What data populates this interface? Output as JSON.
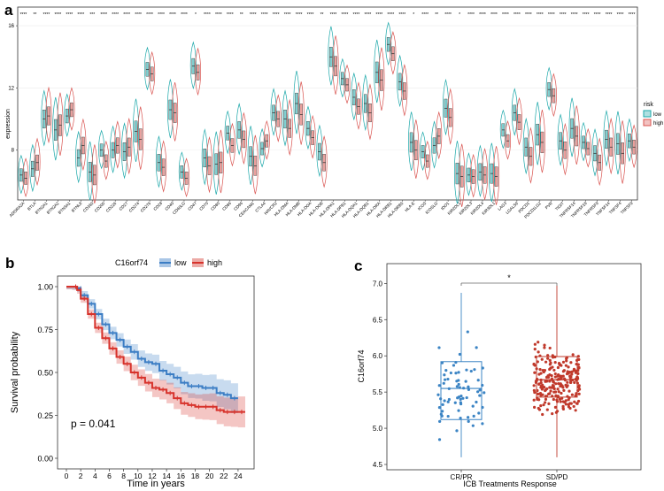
{
  "colors": {
    "low": "#1aa7a9",
    "high": "#d9534f",
    "km_low": "#3b7dc4",
    "km_high": "#d7322b",
    "box_low": "#3b84c4",
    "box_high": "#c0392b"
  },
  "panel_a": {
    "label": "a",
    "ylabel": "expression",
    "legend": {
      "title": "risk",
      "items": [
        "low",
        "high"
      ]
    },
    "chart_data": {
      "type": "violin",
      "ylim": [
        4.8,
        17.2
      ],
      "yticks": [
        8,
        12,
        16
      ],
      "categories": [
        "ADORA2A",
        "BTLA",
        "BTN2A1",
        "BTN2A2",
        "BTN3A1",
        "BTNL8",
        "CD160",
        "CD200",
        "CD226",
        "CD27",
        "CD274",
        "CD276",
        "CD28",
        "CD40",
        "CD40LG",
        "CD47",
        "CD70",
        "CD80",
        "CD86",
        "CD96",
        "CEACAM1",
        "CTLA4",
        "HAVCR2",
        "HLA-DMA",
        "HLA-DMB",
        "HLA-DOA",
        "HLA-DOB",
        "HLA-DPA1",
        "HLA-DPB1",
        "HLA-DQA1",
        "HLA-DQB1",
        "HLA-DRA",
        "HLA-DRB1",
        "HLA-DRB5",
        "HLA-E",
        "ICOS",
        "ICOSLG",
        "IDO1",
        "KIR2DL1",
        "KIR2DL3",
        "KIR2DL4",
        "KIR3DL1",
        "LAG3",
        "LGALS9",
        "PDCD1",
        "PDCD1LG2",
        "PVR",
        "TIGIT",
        "TNFRSF14",
        "TNFRSF18",
        "TNFRSF9",
        "TNFSF14",
        "TNFSF4",
        "TNFSF9"
      ],
      "significance": [
        "****",
        "**",
        "****",
        "****",
        "****",
        "****",
        "***",
        "****",
        "****",
        "****",
        "****",
        "****",
        "****",
        "****",
        "****",
        "*",
        "****",
        "****",
        "****",
        "**",
        "****",
        "****",
        "****",
        "****",
        "****",
        "****",
        "**",
        "****",
        "****",
        "****",
        "****",
        "****",
        "****",
        "****",
        "*",
        "****",
        "**",
        "****",
        "*",
        "****",
        "****",
        "****",
        "****",
        "****",
        "****",
        "****",
        "****",
        "****",
        "****",
        "****",
        "****",
        "****",
        "****",
        "****"
      ],
      "median_low": [
        6.4,
        6.8,
        10.0,
        9.3,
        10.2,
        7.5,
        6.6,
        8.0,
        8.0,
        7.9,
        9.2,
        13.2,
        7.2,
        10.6,
        6.6,
        13.4,
        7.5,
        7.1,
        9.1,
        9.3,
        7.6,
        8.1,
        10.4,
        10.0,
        11.0,
        9.4,
        7.9,
        14.0,
        12.6,
        11.4,
        11.0,
        13.0,
        14.8,
        12.4,
        8.5,
        7.9,
        8.3,
        10.7,
        6.5,
        6.4,
        6.6,
        6.5,
        9.3,
        10.4,
        8.2,
        9.0,
        11.9,
        8.6,
        9.4,
        8.5,
        7.8,
        8.7,
        8.4,
        8.6
      ],
      "median_high": [
        6.2,
        7.2,
        10.2,
        9.6,
        10.6,
        8.3,
        6.4,
        7.3,
        8.3,
        8.2,
        8.7,
        12.9,
        6.9,
        10.4,
        6.2,
        13.0,
        7.0,
        7.2,
        8.3,
        8.7,
        7.0,
        8.6,
        10.0,
        9.4,
        10.3,
        8.8,
        7.2,
        13.4,
        12.2,
        10.8,
        10.4,
        12.5,
        14.2,
        11.8,
        8.0,
        7.3,
        8.9,
        10.1,
        6.3,
        6.3,
        6.4,
        6.3,
        8.6,
        9.8,
        7.6,
        8.5,
        11.5,
        8.0,
        8.9,
        8.1,
        7.2,
        8.2,
        7.8,
        8.2
      ]
    }
  },
  "panel_b": {
    "label": "b",
    "legend_title": "C16orf74",
    "legend": [
      "low",
      "high"
    ],
    "pvalue": "p = 0.041",
    "chart_data": {
      "type": "line",
      "xlabel": "Time in years",
      "ylabel": "Survival probability",
      "xlim": [
        0,
        25
      ],
      "ylim": [
        0,
        1
      ],
      "xticks": [
        0,
        2,
        4,
        6,
        8,
        10,
        12,
        14,
        16,
        18,
        20,
        22,
        24
      ],
      "yticks": [
        0.0,
        0.25,
        0.5,
        0.75,
        1.0
      ],
      "series": [
        {
          "name": "low",
          "x": [
            0,
            0.8,
            1.5,
            2,
            3,
            4,
            5,
            6,
            7,
            8,
            9,
            10,
            11,
            12,
            13,
            14,
            15,
            16,
            17,
            18,
            19,
            20,
            21,
            22,
            23,
            24
          ],
          "y": [
            1.0,
            1.0,
            0.99,
            0.95,
            0.9,
            0.84,
            0.78,
            0.73,
            0.69,
            0.65,
            0.62,
            0.58,
            0.56,
            0.55,
            0.51,
            0.49,
            0.47,
            0.44,
            0.42,
            0.42,
            0.41,
            0.41,
            0.38,
            0.37,
            0.35,
            0.35
          ]
        },
        {
          "name": "high",
          "x": [
            0,
            0.8,
            1.5,
            2,
            3,
            4,
            5,
            6,
            7,
            8,
            9,
            10,
            11,
            12,
            13,
            14,
            15,
            16,
            17,
            18,
            19,
            20,
            21,
            22,
            23,
            24,
            25
          ],
          "y": [
            1.0,
            1.0,
            0.98,
            0.93,
            0.84,
            0.76,
            0.7,
            0.64,
            0.59,
            0.55,
            0.5,
            0.47,
            0.44,
            0.41,
            0.4,
            0.38,
            0.35,
            0.32,
            0.31,
            0.3,
            0.3,
            0.3,
            0.28,
            0.27,
            0.27,
            0.27,
            0.27
          ]
        }
      ]
    }
  },
  "panel_c": {
    "label": "c",
    "significance": "*",
    "chart_data": {
      "type": "box",
      "xlabel": "ICB  Treatments  Response",
      "ylabel": "C16orf74",
      "categories": [
        "CR/PR",
        "SD/PD"
      ],
      "ylim": [
        4.5,
        7.2
      ],
      "yticks": [
        4.5,
        5.0,
        5.5,
        6.0,
        6.5,
        7.0
      ],
      "boxes": [
        {
          "name": "CR/PR",
          "whisker_low": 4.6,
          "q1": 5.12,
          "median": 5.55,
          "q3": 5.92,
          "whisker_high": 6.87,
          "n": 70
        },
        {
          "name": "SD/PD",
          "whisker_low": 4.6,
          "q1": 5.43,
          "median": 5.67,
          "q3": 5.99,
          "whisker_high": 6.97,
          "n": 230
        }
      ]
    }
  }
}
